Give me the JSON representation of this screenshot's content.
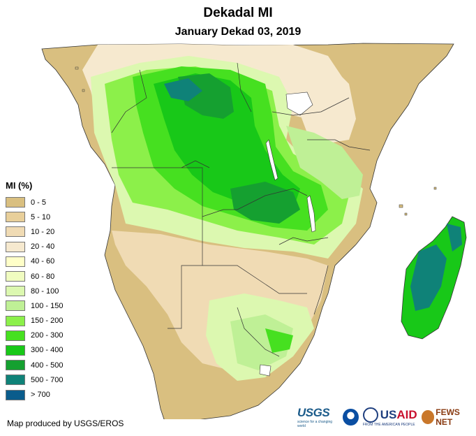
{
  "title": "Dekadal MI",
  "subtitle": "January Dekad 03, 2019",
  "legend": {
    "title": "MI (%)",
    "items": [
      {
        "label": "0 - 5",
        "color": "#d9bf80"
      },
      {
        "label": "5 - 10",
        "color": "#e8cf9a"
      },
      {
        "label": "10 - 20",
        "color": "#f0dbb4"
      },
      {
        "label": "20 - 40",
        "color": "#f6e9cf"
      },
      {
        "label": "40 - 60",
        "color": "#ffffc8"
      },
      {
        "label": "60 - 80",
        "color": "#f0fcc0"
      },
      {
        "label": "80 - 100",
        "color": "#dcf8b0"
      },
      {
        "label": "100 - 150",
        "color": "#bff096"
      },
      {
        "label": "150 - 200",
        "color": "#8cf04a"
      },
      {
        "label": "200 - 300",
        "color": "#46e020"
      },
      {
        "label": "300 - 400",
        "color": "#18c818"
      },
      {
        "label": "400 - 500",
        "color": "#15a030"
      },
      {
        "label": "500 - 700",
        "color": "#0f8278"
      },
      {
        "label": "> 700",
        "color": "#0a5c8c"
      }
    ]
  },
  "credit": "Map produced by USGS/EROS",
  "logos": {
    "usgs": "USGS",
    "usgs_tag": "science for a changing world",
    "usaid_a": "US",
    "usaid_b": "AID",
    "usaid_tag": "FROM THE AMERICAN PEOPLE",
    "fews": "FEWS NET"
  }
}
